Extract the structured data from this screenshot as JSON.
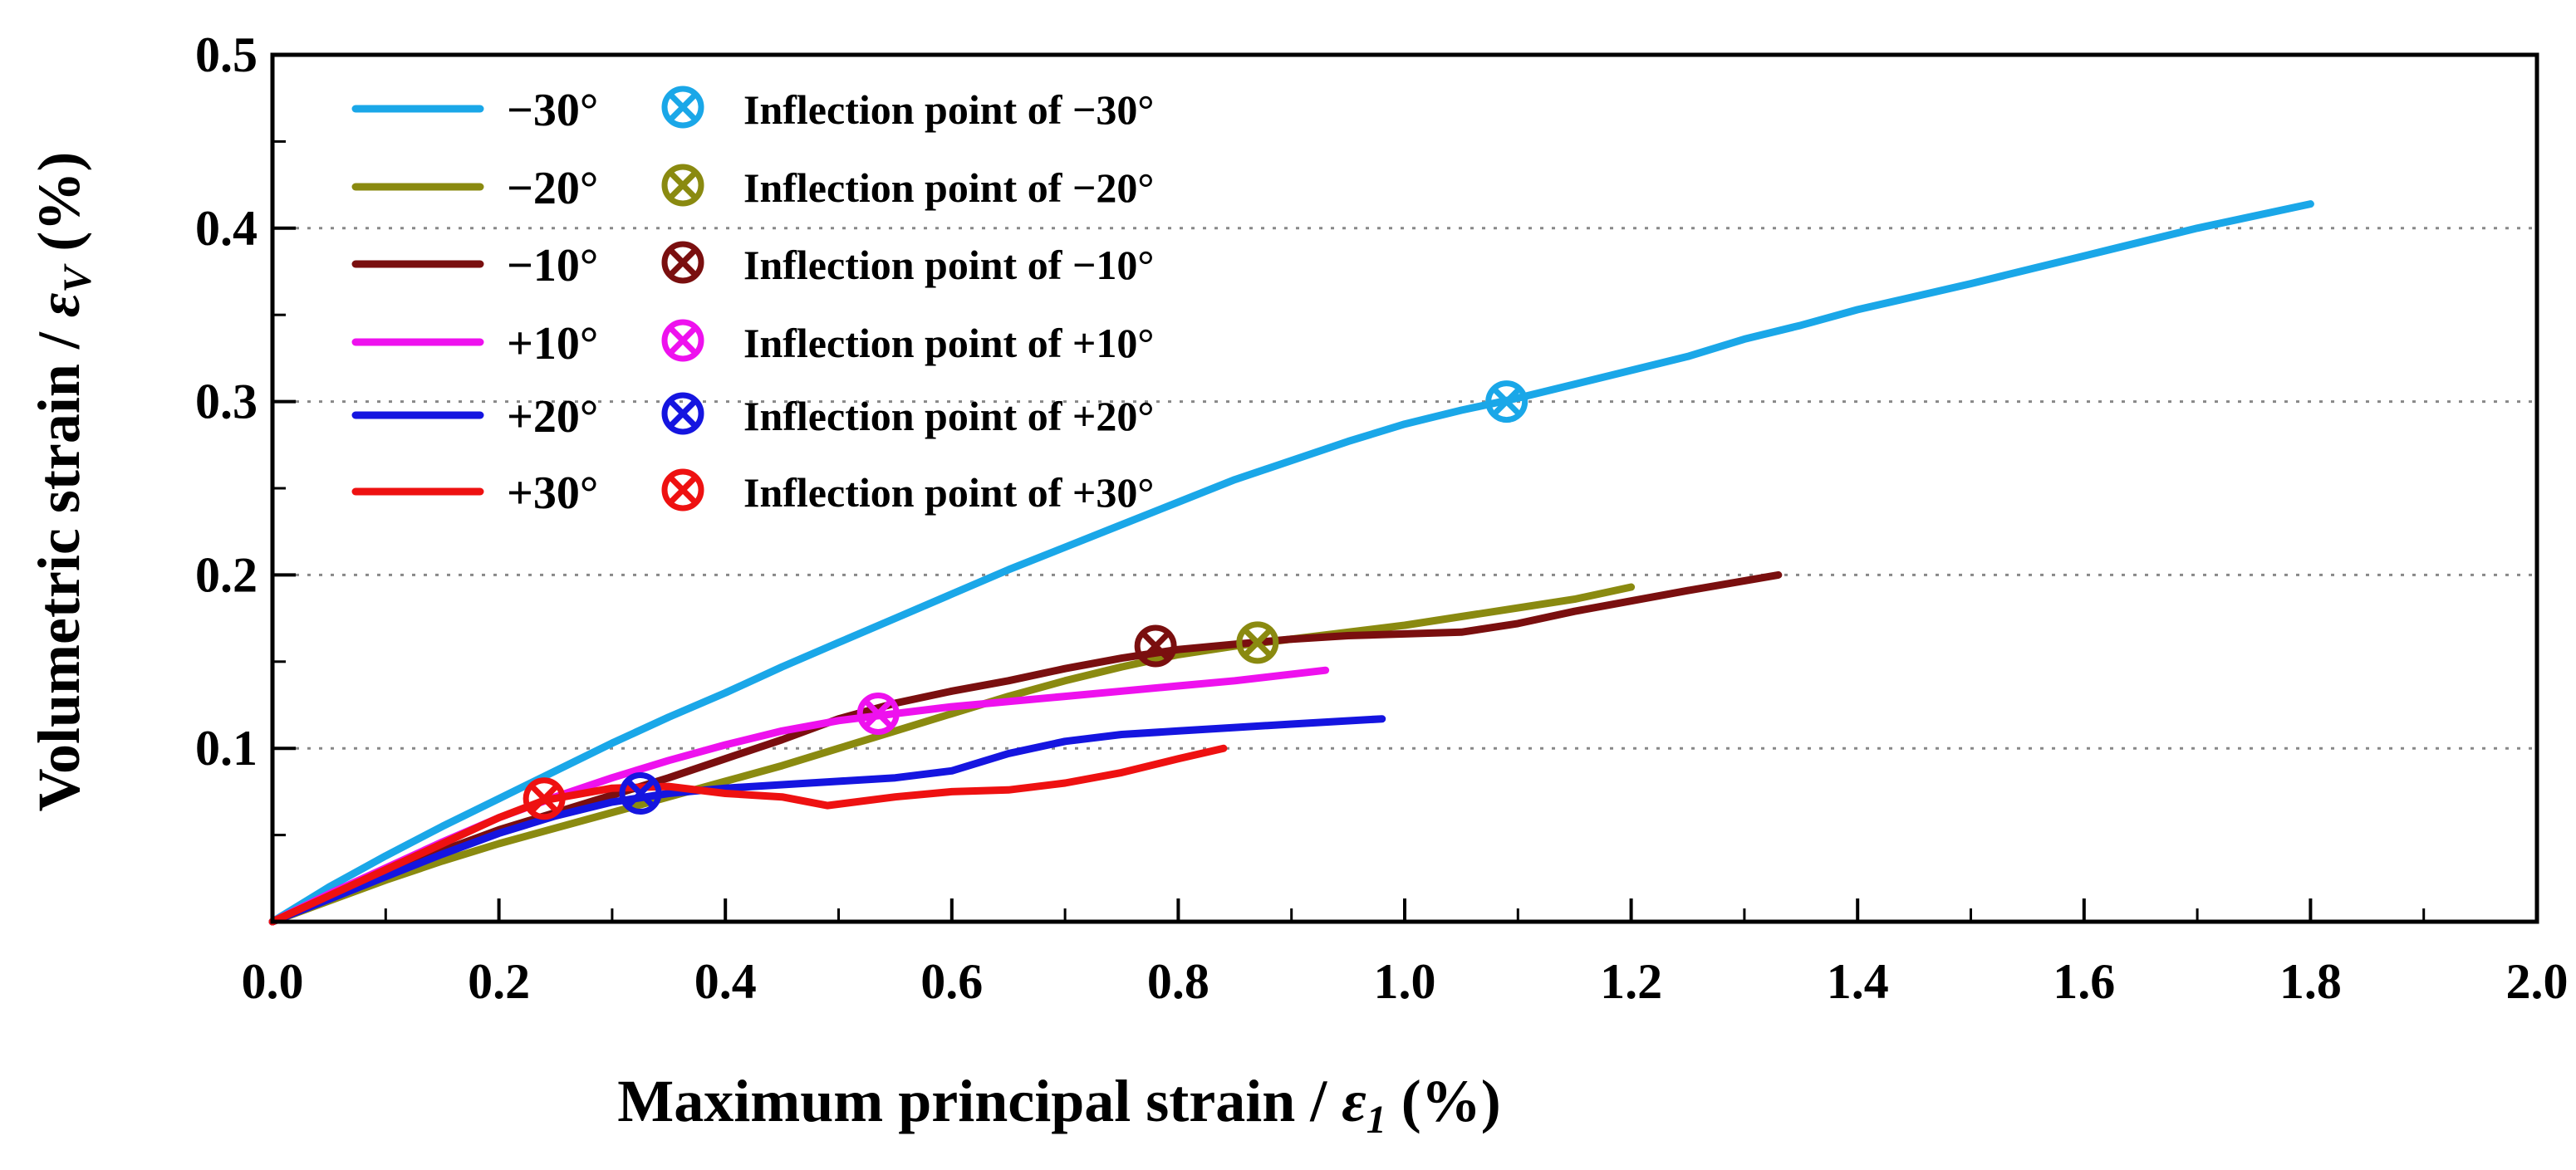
{
  "chart_data": {
    "type": "line",
    "title": "",
    "xlabel": "Maximum principal strain / ε1 (%)",
    "ylabel": "Volumetric strain / εV (%)",
    "xlabel_parts": {
      "main": "Maximum principal strain / ",
      "symbol": "ε",
      "subscript": "1",
      "unit": " (%)"
    },
    "ylabel_parts": {
      "main": "Volumetric strain  / ",
      "symbol": "ε",
      "subscript": "V",
      "unit": " (%)"
    },
    "xlim": [
      0,
      2.0
    ],
    "ylim": [
      0,
      0.5
    ],
    "x_ticks": [
      "0.0",
      "0.2",
      "0.4",
      "0.6",
      "0.8",
      "1.0",
      "1.2",
      "1.4",
      "1.6",
      "1.8",
      "2.0"
    ],
    "y_ticks": [
      "0.1",
      "0.2",
      "0.3",
      "0.4",
      "0.5"
    ],
    "y_tick_values": [
      0.1,
      0.2,
      0.3,
      0.4,
      0.5
    ],
    "grid": "horizontal dotted at 0.1, 0.2, 0.3, 0.4",
    "legend_position": "top-left",
    "series": [
      {
        "name": "−30°",
        "color": "#1aa7e8",
        "x": [
          0,
          0.05,
          0.1,
          0.15,
          0.2,
          0.25,
          0.3,
          0.35,
          0.4,
          0.45,
          0.5,
          0.55,
          0.6,
          0.65,
          0.7,
          0.75,
          0.8,
          0.85,
          0.9,
          0.95,
          1.0,
          1.05,
          1.1,
          1.15,
          1.2,
          1.25,
          1.3,
          1.35,
          1.4,
          1.5,
          1.6,
          1.7,
          1.8
        ],
        "y": [
          0,
          0.02,
          0.038,
          0.055,
          0.071,
          0.087,
          0.103,
          0.118,
          0.132,
          0.147,
          0.161,
          0.175,
          0.189,
          0.203,
          0.216,
          0.229,
          0.242,
          0.255,
          0.266,
          0.277,
          0.287,
          0.295,
          0.302,
          0.31,
          0.318,
          0.326,
          0.336,
          0.344,
          0.353,
          0.368,
          0.384,
          0.4,
          0.414
        ],
        "inflection": [
          1.09,
          0.3
        ],
        "inflection_label": "Inflection point of −30°"
      },
      {
        "name": "−20°",
        "color": "#8a8a10",
        "x": [
          0,
          0.05,
          0.1,
          0.15,
          0.2,
          0.25,
          0.3,
          0.35,
          0.4,
          0.45,
          0.5,
          0.55,
          0.6,
          0.65,
          0.7,
          0.75,
          0.8,
          0.85,
          0.9,
          0.95,
          1.0,
          1.05,
          1.1,
          1.15,
          1.2
        ],
        "y": [
          0,
          0.012,
          0.024,
          0.035,
          0.045,
          0.054,
          0.063,
          0.072,
          0.081,
          0.09,
          0.1,
          0.11,
          0.12,
          0.13,
          0.139,
          0.147,
          0.154,
          0.159,
          0.163,
          0.167,
          0.171,
          0.176,
          0.181,
          0.186,
          0.193
        ],
        "inflection": [
          0.87,
          0.161
        ],
        "inflection_label": "Inflection point of −20°"
      },
      {
        "name": "−10°",
        "color": "#7a0f0f",
        "x": [
          0,
          0.05,
          0.1,
          0.15,
          0.2,
          0.25,
          0.3,
          0.35,
          0.4,
          0.45,
          0.5,
          0.55,
          0.6,
          0.65,
          0.7,
          0.75,
          0.8,
          0.85,
          0.9,
          0.95,
          1.0,
          1.05,
          1.1,
          1.15,
          1.2,
          1.25,
          1.33
        ],
        "y": [
          0,
          0.014,
          0.028,
          0.041,
          0.053,
          0.063,
          0.073,
          0.083,
          0.094,
          0.105,
          0.117,
          0.126,
          0.133,
          0.139,
          0.146,
          0.152,
          0.157,
          0.16,
          0.163,
          0.165,
          0.166,
          0.167,
          0.172,
          0.179,
          0.185,
          0.191,
          0.2
        ],
        "inflection": [
          0.78,
          0.159
        ],
        "inflection_label": "Inflection point of −10°"
      },
      {
        "name": "+10°",
        "color": "#ee11ee",
        "x": [
          0,
          0.05,
          0.1,
          0.15,
          0.2,
          0.25,
          0.3,
          0.35,
          0.4,
          0.45,
          0.5,
          0.55,
          0.6,
          0.65,
          0.7,
          0.75,
          0.8,
          0.85,
          0.93
        ],
        "y": [
          0,
          0.016,
          0.031,
          0.046,
          0.06,
          0.072,
          0.083,
          0.093,
          0.102,
          0.11,
          0.116,
          0.12,
          0.124,
          0.127,
          0.13,
          0.133,
          0.136,
          0.139,
          0.145
        ],
        "inflection": [
          0.535,
          0.12
        ],
        "inflection_label": "Inflection point of +10°"
      },
      {
        "name": "+20°",
        "color": "#1515e0",
        "x": [
          0,
          0.05,
          0.1,
          0.15,
          0.2,
          0.25,
          0.3,
          0.35,
          0.4,
          0.45,
          0.5,
          0.55,
          0.6,
          0.65,
          0.7,
          0.75,
          0.8,
          0.85,
          0.9,
          0.98
        ],
        "y": [
          0,
          0.013,
          0.026,
          0.039,
          0.051,
          0.061,
          0.069,
          0.074,
          0.077,
          0.079,
          0.081,
          0.083,
          0.087,
          0.097,
          0.104,
          0.108,
          0.11,
          0.112,
          0.114,
          0.117
        ],
        "inflection": [
          0.325,
          0.074
        ],
        "inflection_label": "Inflection point of +20°"
      },
      {
        "name": "+30°",
        "color": "#ee1111",
        "x": [
          0,
          0.05,
          0.1,
          0.15,
          0.2,
          0.24,
          0.3,
          0.35,
          0.4,
          0.45,
          0.49,
          0.55,
          0.6,
          0.65,
          0.7,
          0.75,
          0.8,
          0.84
        ],
        "y": [
          0,
          0.015,
          0.03,
          0.045,
          0.06,
          0.07,
          0.077,
          0.078,
          0.074,
          0.072,
          0.067,
          0.072,
          0.075,
          0.076,
          0.08,
          0.086,
          0.094,
          0.1
        ],
        "inflection": [
          0.24,
          0.071
        ],
        "inflection_label": "Inflection point of +30°"
      }
    ]
  }
}
